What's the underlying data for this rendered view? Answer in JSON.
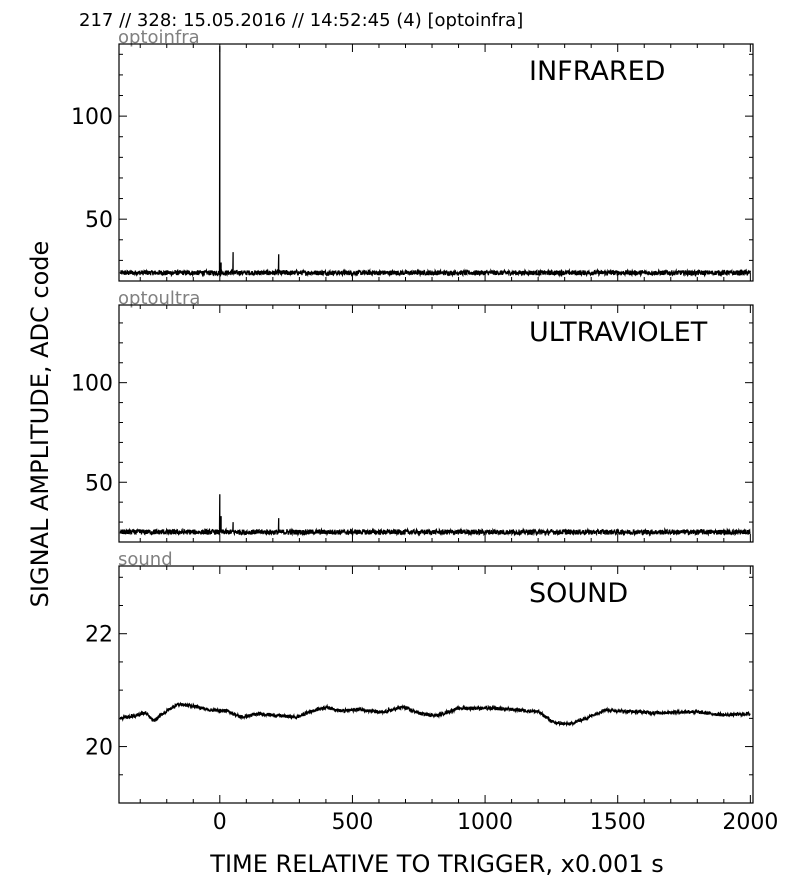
{
  "header": "217 // 328:   15.05.2016 // 14:52:45 (4)  [optoinfra]",
  "xlabel": "TIME RELATIVE TO TRIGGER,   x0.001 s",
  "ylabel": "SIGNAL AMPLITUDE,  ADC code",
  "chart_data": [
    {
      "type": "line",
      "title": "INFRARED",
      "channel": "optoinfra",
      "xlim": [
        -380,
        2010
      ],
      "ylim": [
        20,
        135
      ],
      "xticks": [
        0,
        500,
        1000,
        1500,
        2000
      ],
      "yticks": [
        50,
        100
      ],
      "baseline": 24,
      "noise": 1.2,
      "spikes": [
        {
          "x": 0,
          "y": 134
        },
        {
          "x": 50,
          "y": 34
        },
        {
          "x": 222,
          "y": 33
        },
        {
          "x": 5,
          "y": 29
        }
      ],
      "x_range": [
        -375,
        2000
      ]
    },
    {
      "type": "line",
      "title": "ULTRAVIOLET",
      "channel": "optoultra",
      "xlim": [
        -380,
        2010
      ],
      "ylim": [
        20,
        139
      ],
      "xticks": [
        0,
        500,
        1000,
        1500,
        2000
      ],
      "yticks": [
        50,
        100
      ],
      "baseline": 25,
      "noise": 1.3,
      "spikes": [
        {
          "x": 0,
          "y": 44
        },
        {
          "x": 50,
          "y": 30
        },
        {
          "x": 222,
          "y": 32
        },
        {
          "x": 5,
          "y": 33
        }
      ],
      "x_range": [
        -375,
        2000
      ]
    },
    {
      "type": "line",
      "title": "SOUND",
      "channel": "sound",
      "xlim": [
        -380,
        2010
      ],
      "ylim": [
        19,
        23.2
      ],
      "xticks": [
        0,
        500,
        1000,
        1500,
        2000
      ],
      "yticks": [
        20,
        22
      ],
      "noise": 0.03,
      "trend": [
        {
          "x": -375,
          "y": 20.5
        },
        {
          "x": -320,
          "y": 20.55
        },
        {
          "x": -280,
          "y": 20.6
        },
        {
          "x": -250,
          "y": 20.45
        },
        {
          "x": -210,
          "y": 20.6
        },
        {
          "x": -160,
          "y": 20.75
        },
        {
          "x": -100,
          "y": 20.72
        },
        {
          "x": -40,
          "y": 20.65
        },
        {
          "x": 30,
          "y": 20.63
        },
        {
          "x": 80,
          "y": 20.52
        },
        {
          "x": 150,
          "y": 20.58
        },
        {
          "x": 220,
          "y": 20.55
        },
        {
          "x": 290,
          "y": 20.52
        },
        {
          "x": 340,
          "y": 20.62
        },
        {
          "x": 400,
          "y": 20.7
        },
        {
          "x": 460,
          "y": 20.63
        },
        {
          "x": 530,
          "y": 20.66
        },
        {
          "x": 610,
          "y": 20.6
        },
        {
          "x": 690,
          "y": 20.7
        },
        {
          "x": 760,
          "y": 20.58
        },
        {
          "x": 820,
          "y": 20.55
        },
        {
          "x": 900,
          "y": 20.68
        },
        {
          "x": 1000,
          "y": 20.68
        },
        {
          "x": 1100,
          "y": 20.66
        },
        {
          "x": 1200,
          "y": 20.62
        },
        {
          "x": 1260,
          "y": 20.42
        },
        {
          "x": 1320,
          "y": 20.4
        },
        {
          "x": 1380,
          "y": 20.5
        },
        {
          "x": 1450,
          "y": 20.65
        },
        {
          "x": 1550,
          "y": 20.62
        },
        {
          "x": 1650,
          "y": 20.6
        },
        {
          "x": 1780,
          "y": 20.62
        },
        {
          "x": 1900,
          "y": 20.56
        },
        {
          "x": 2000,
          "y": 20.58
        }
      ]
    }
  ]
}
